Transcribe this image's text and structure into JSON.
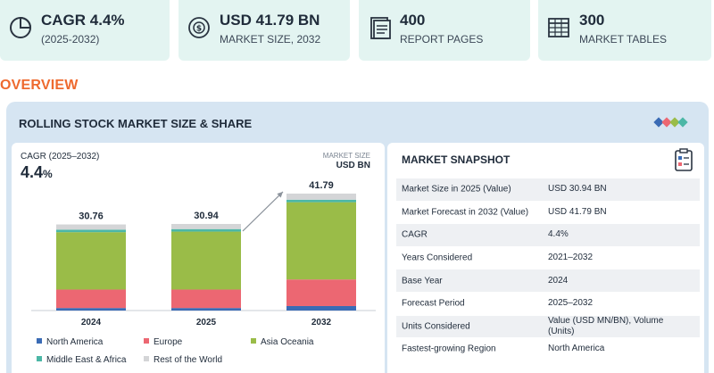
{
  "stats": [
    {
      "value": "CAGR 4.4%",
      "sub": "(2025-2032)",
      "icon": "pie-chart-icon"
    },
    {
      "value": "USD 41.79 BN",
      "sub": "MARKET SIZE, 2032",
      "icon": "money-globe-icon"
    },
    {
      "value": "400",
      "sub": "REPORT PAGES",
      "icon": "report-pages-icon"
    },
    {
      "value": "300",
      "sub": "MARKET TABLES",
      "icon": "market-table-icon"
    }
  ],
  "overview_label": "OVERVIEW",
  "panel_title": "ROLLING STOCK MARKET SIZE & SHARE",
  "chart": {
    "cagr_label": "CAGR (2025–2032)",
    "cagr_value": "4.4",
    "cagr_unit": "%",
    "unit_top": "MARKET SIZE",
    "unit_bottom": "USD BN"
  },
  "chart_data": {
    "type": "bar",
    "stacked": true,
    "categories": [
      "2024",
      "2025",
      "2032"
    ],
    "totals": [
      30.76,
      30.94,
      41.79
    ],
    "total_labels": [
      "30.76",
      "30.94",
      "41.79"
    ],
    "series": [
      {
        "name": "North America",
        "color": "#3a6bb5",
        "values": [
          0.9,
          0.9,
          1.6
        ]
      },
      {
        "name": "Europe",
        "color": "#ec6772",
        "values": [
          6.6,
          6.6,
          9.5
        ]
      },
      {
        "name": "Asia Oceania",
        "color": "#9abc48",
        "values": [
          20.5,
          20.7,
          27.6
        ]
      },
      {
        "name": "Middle East & Africa",
        "color": "#4cb7a6",
        "values": [
          0.9,
          0.9,
          0.9
        ]
      },
      {
        "name": "Rest of the World",
        "color": "#d4d5d7",
        "values": [
          1.86,
          1.84,
          2.19
        ]
      }
    ],
    "ylim": [
      0,
      44
    ],
    "legend_position": "bottom",
    "annotation": "growth arrow from 2025 to 2032"
  },
  "snapshot": {
    "title": "MARKET SNAPSHOT",
    "rows": [
      {
        "k": "Market Size in 2025 (Value)",
        "v": "USD 30.94 BN"
      },
      {
        "k": "Market Forecast in 2032 (Value)",
        "v": "USD 41.79 BN"
      },
      {
        "k": "CAGR",
        "v": "4.4%"
      },
      {
        "k": "Years Considered",
        "v": "2021–2032"
      },
      {
        "k": "Base Year",
        "v": "2024"
      },
      {
        "k": "Forecast Period",
        "v": "2025–2032"
      },
      {
        "k": "Units Considered",
        "v": "Value (USD MN/BN), Volume (Units)"
      },
      {
        "k": "Fastest-growing Region",
        "v": "North America"
      }
    ]
  }
}
